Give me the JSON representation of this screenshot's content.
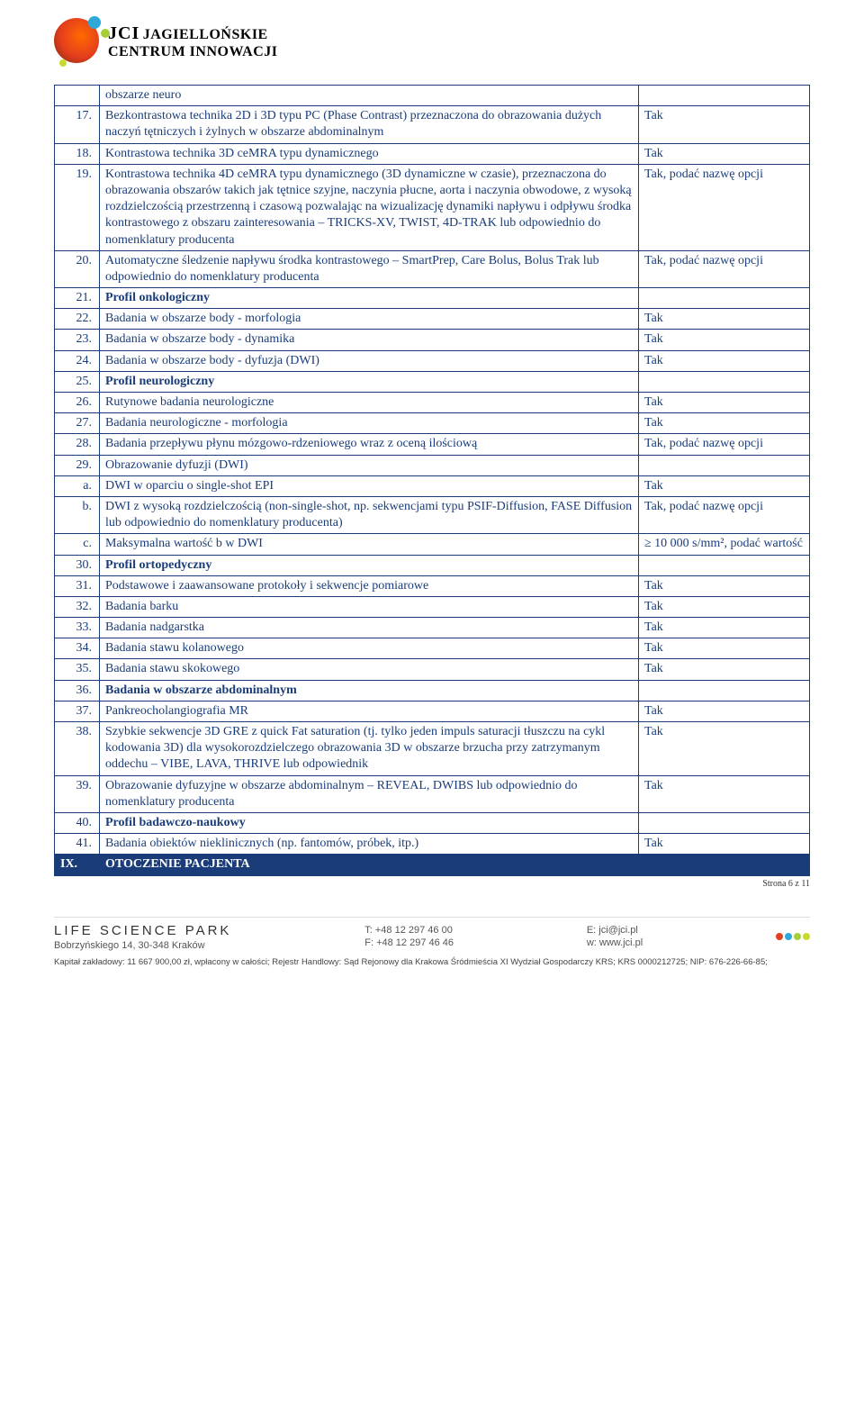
{
  "logo": {
    "jci": "JCI",
    "line1": "JAGIELLOŃSKIE",
    "line2": "CENTRUM INNOWACJI"
  },
  "rows": [
    {
      "type": "row",
      "num": "",
      "desc": "obszarze neuro",
      "req": ""
    },
    {
      "type": "row",
      "num": "17.",
      "desc": "Bezkontrastowa technika 2D i 3D typu PC (Phase Contrast) przeznaczona do obrazowania dużych naczyń tętniczych i żylnych w obszarze abdominalnym",
      "req": "Tak"
    },
    {
      "type": "row",
      "num": "18.",
      "desc": "Kontrastowa technika 3D ceMRA typu dynamicznego",
      "req": "Tak"
    },
    {
      "type": "row",
      "num": "19.",
      "desc": "Kontrastowa technika 4D ceMRA typu dynamicznego (3D dynamiczne w czasie), przeznaczona do obrazowania obszarów takich jak tętnice szyjne, naczynia płucne, aorta i naczynia obwodowe, z wysoką rozdzielczością przestrzenną i czasową pozwalając na wizualizację dynamiki napływu i odpływu środka kontrastowego z obszaru zainteresowania – TRICKS-XV, TWIST, 4D-TRAK lub odpowiednio do nomenklatury producenta",
      "req": "Tak, podać nazwę opcji"
    },
    {
      "type": "row",
      "num": "20.",
      "desc": "Automatyczne śledzenie napływu środka kontrastowego – SmartPrep, Care Bolus, Bolus Trak lub odpowiednio do nomenklatury producenta",
      "req": "Tak, podać nazwę opcji"
    },
    {
      "type": "section",
      "num": "21.",
      "desc": "Profil onkologiczny",
      "req": ""
    },
    {
      "type": "row",
      "num": "22.",
      "desc": "Badania w obszarze body - morfologia",
      "req": "Tak"
    },
    {
      "type": "row",
      "num": "23.",
      "desc": "Badania w obszarze body - dynamika",
      "req": "Tak"
    },
    {
      "type": "row",
      "num": "24.",
      "desc": "Badania w obszarze body - dyfuzja (DWI)",
      "req": "Tak"
    },
    {
      "type": "section",
      "num": "25.",
      "desc": "Profil neurologiczny",
      "req": ""
    },
    {
      "type": "row",
      "num": "26.",
      "desc": "Rutynowe badania neurologiczne",
      "req": "Tak"
    },
    {
      "type": "row",
      "num": "27.",
      "desc": "Badania neurologiczne - morfologia",
      "req": "Tak"
    },
    {
      "type": "row",
      "num": "28.",
      "desc": "Badania przepływu płynu mózgowo-rdzeniowego wraz z oceną ilościową",
      "req": "Tak, podać nazwę opcji"
    },
    {
      "type": "row",
      "num": "29.",
      "desc": "Obrazowanie dyfuzji (DWI)",
      "req": ""
    },
    {
      "type": "row",
      "num": "a.",
      "desc": "DWI w oparciu o single-shot EPI",
      "req": "Tak"
    },
    {
      "type": "row",
      "num": "b.",
      "desc": "DWI z wysoką rozdzielczością (non-single-shot, np. sekwencjami typu PSIF-Diffusion, FASE Diffusion lub odpowiednio do nomenklatury producenta)",
      "req": "Tak, podać nazwę opcji"
    },
    {
      "type": "row",
      "num": "c.",
      "desc": "Maksymalna wartość b w DWI",
      "req": "≥ 10 000 s/mm², podać wartość"
    },
    {
      "type": "section",
      "num": "30.",
      "desc": "Profil ortopedyczny",
      "req": ""
    },
    {
      "type": "row",
      "num": "31.",
      "desc": "Podstawowe i zaawansowane protokoły i sekwencje pomiarowe",
      "req": "Tak"
    },
    {
      "type": "row",
      "num": "32.",
      "desc": "Badania barku",
      "req": "Tak"
    },
    {
      "type": "row",
      "num": "33.",
      "desc": "Badania nadgarstka",
      "req": "Tak"
    },
    {
      "type": "row",
      "num": "34.",
      "desc": "Badania stawu kolanowego",
      "req": "Tak"
    },
    {
      "type": "row",
      "num": "35.",
      "desc": "Badania stawu skokowego",
      "req": "Tak"
    },
    {
      "type": "section",
      "num": "36.",
      "desc": "Badania w obszarze abdominalnym",
      "req": ""
    },
    {
      "type": "row",
      "num": "37.",
      "desc": "Pankreocholangiografia MR",
      "req": "Tak"
    },
    {
      "type": "row",
      "num": "38.",
      "desc": "Szybkie sekwencje 3D GRE z quick Fat saturation (tj. tylko jeden impuls saturacji tłuszczu na cykl kodowania 3D) dla wysokorozdzielczego obrazowania 3D w obszarze brzucha przy zatrzymanym oddechu – VIBE, LAVA, THRIVE lub odpowiednik",
      "req": "Tak"
    },
    {
      "type": "row",
      "num": "39.",
      "desc": "Obrazowanie dyfuzyjne w obszarze abdominalnym – REVEAL, DWIBS lub odpowiednio do nomenklatury producenta",
      "req": "Tak"
    },
    {
      "type": "section",
      "num": "40.",
      "desc": "Profil badawczo-naukowy",
      "req": ""
    },
    {
      "type": "row",
      "num": "41.",
      "desc": "Badania obiektów nieklinicznych (np. fantomów, próbek, itp.)",
      "req": "Tak"
    },
    {
      "type": "roman",
      "num": "IX.",
      "desc": "OTOCZENIE PACJENTA",
      "req": ""
    }
  ],
  "footer": {
    "life": "LIFE SCIENCE PARK",
    "addr": "Bobrzyńskiego 14, 30-348 Kraków",
    "tel": "T: +48 12 297 46 00",
    "fax": "F: +48 12 297 46 46",
    "email": "E: jci@jci.pl",
    "web": "w: www.jci.pl",
    "page": "Strona 6 z 11",
    "kapital": "Kapitał zakładowy: 11 667 900,00 zł, wpłacony w całości;  Rejestr Handlowy: Sąd Rejonowy dla Krakowa Śródmieścia XI Wydział Gospodarczy KRS;  KRS 0000212725;  NIP: 676-226-66-85;",
    "dot_colors": [
      "#e53e1d",
      "#2da8d8",
      "#a6ce39",
      "#c9da2e"
    ]
  }
}
